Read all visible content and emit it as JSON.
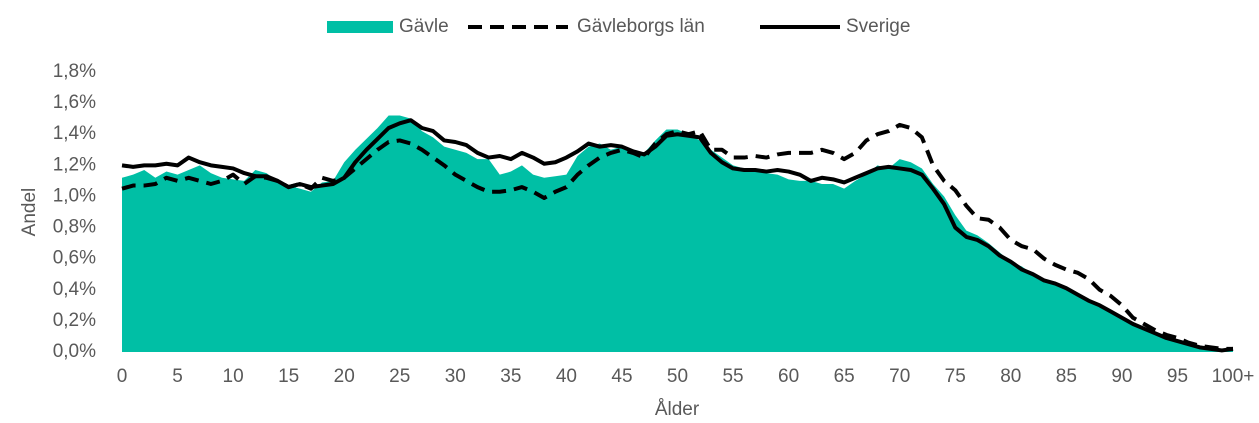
{
  "chart_data": {
    "type": "line",
    "xlabel": "Ålder",
    "ylabel": "Andel",
    "categories": [
      "0",
      null,
      null,
      null,
      null,
      "5",
      null,
      null,
      null,
      null,
      "10",
      null,
      null,
      null,
      null,
      "15",
      null,
      null,
      null,
      null,
      "20",
      null,
      null,
      null,
      null,
      "25",
      null,
      null,
      null,
      null,
      "30",
      null,
      null,
      null,
      null,
      "35",
      null,
      null,
      null,
      null,
      "40",
      null,
      null,
      null,
      null,
      "45",
      null,
      null,
      null,
      null,
      "50",
      null,
      null,
      null,
      null,
      "55",
      null,
      null,
      null,
      null,
      "60",
      null,
      null,
      null,
      null,
      "65",
      null,
      null,
      null,
      null,
      "70",
      null,
      null,
      null,
      null,
      "75",
      null,
      null,
      null,
      null,
      "80",
      null,
      null,
      null,
      null,
      "85",
      null,
      null,
      null,
      null,
      "90",
      null,
      null,
      null,
      null,
      "95",
      null,
      null,
      null,
      null,
      "100+"
    ],
    "ylim": [
      0,
      1.8
    ],
    "yticks": [
      {
        "value": 0,
        "label": "0,0%"
      },
      {
        "value": 0.2,
        "label": "0,2%"
      },
      {
        "value": 0.4,
        "label": "0,4%"
      },
      {
        "value": 0.6,
        "label": "0,6%"
      },
      {
        "value": 0.8,
        "label": "0,8%"
      },
      {
        "value": 1.0,
        "label": "1,0%"
      },
      {
        "value": 1.2,
        "label": "1,2%"
      },
      {
        "value": 1.4,
        "label": "1,4%"
      },
      {
        "value": 1.6,
        "label": "1,6%"
      },
      {
        "value": 1.8,
        "label": "1,8%"
      }
    ],
    "legend": "top",
    "series": [
      {
        "name": "Gävle",
        "color": "#00bfa5",
        "style": "area",
        "values": [
          1.12,
          1.14,
          1.17,
          1.12,
          1.16,
          1.14,
          1.17,
          1.2,
          1.15,
          1.12,
          1.11,
          1.1,
          1.17,
          1.15,
          1.1,
          1.07,
          1.05,
          1.03,
          1.09,
          1.1,
          1.22,
          1.3,
          1.37,
          1.44,
          1.52,
          1.52,
          1.5,
          1.42,
          1.38,
          1.32,
          1.3,
          1.28,
          1.24,
          1.24,
          1.14,
          1.16,
          1.2,
          1.14,
          1.12,
          1.13,
          1.14,
          1.26,
          1.32,
          1.34,
          1.3,
          1.32,
          1.3,
          1.28,
          1.36,
          1.43,
          1.43,
          1.4,
          1.36,
          1.3,
          1.25,
          1.2,
          1.18,
          1.17,
          1.15,
          1.14,
          1.11,
          1.1,
          1.1,
          1.08,
          1.08,
          1.05,
          1.1,
          1.14,
          1.2,
          1.18,
          1.24,
          1.22,
          1.18,
          1.08,
          1.0,
          0.88,
          0.78,
          0.75,
          0.7,
          0.64,
          0.58,
          0.55,
          0.5,
          0.46,
          0.43,
          0.4,
          0.36,
          0.32,
          0.29,
          0.25,
          0.21,
          0.18,
          0.14,
          0.11,
          0.09,
          0.07,
          0.06,
          0.04,
          0.03,
          0.02,
          0.02
        ]
      },
      {
        "name": "Gävleborgs län",
        "color": "#000000",
        "style": "dashed",
        "values": [
          1.05,
          1.07,
          1.07,
          1.08,
          1.12,
          1.1,
          1.12,
          1.1,
          1.08,
          1.1,
          1.14,
          1.08,
          1.13,
          1.12,
          1.1,
          1.06,
          1.08,
          1.05,
          1.12,
          1.1,
          1.12,
          1.18,
          1.24,
          1.3,
          1.35,
          1.36,
          1.34,
          1.3,
          1.25,
          1.2,
          1.14,
          1.1,
          1.06,
          1.03,
          1.03,
          1.04,
          1.06,
          1.03,
          0.99,
          1.03,
          1.06,
          1.14,
          1.2,
          1.25,
          1.28,
          1.3,
          1.28,
          1.25,
          1.34,
          1.4,
          1.42,
          1.4,
          1.42,
          1.3,
          1.3,
          1.25,
          1.25,
          1.26,
          1.25,
          1.27,
          1.28,
          1.28,
          1.28,
          1.3,
          1.28,
          1.24,
          1.28,
          1.36,
          1.4,
          1.42,
          1.46,
          1.44,
          1.38,
          1.2,
          1.1,
          1.04,
          0.94,
          0.86,
          0.85,
          0.8,
          0.72,
          0.68,
          0.66,
          0.6,
          0.56,
          0.53,
          0.51,
          0.47,
          0.4,
          0.36,
          0.3,
          0.22,
          0.18,
          0.14,
          0.11,
          0.09,
          0.06,
          0.04,
          0.03,
          0.02,
          0.02
        ]
      },
      {
        "name": "Sverige",
        "color": "#000000",
        "style": "solid",
        "values": [
          1.2,
          1.19,
          1.2,
          1.2,
          1.21,
          1.2,
          1.25,
          1.22,
          1.2,
          1.19,
          1.18,
          1.15,
          1.13,
          1.13,
          1.1,
          1.06,
          1.08,
          1.06,
          1.07,
          1.08,
          1.12,
          1.22,
          1.3,
          1.37,
          1.44,
          1.47,
          1.49,
          1.44,
          1.42,
          1.36,
          1.35,
          1.33,
          1.28,
          1.25,
          1.26,
          1.24,
          1.28,
          1.25,
          1.21,
          1.22,
          1.25,
          1.29,
          1.34,
          1.32,
          1.33,
          1.32,
          1.29,
          1.27,
          1.32,
          1.39,
          1.4,
          1.39,
          1.38,
          1.28,
          1.22,
          1.18,
          1.17,
          1.17,
          1.16,
          1.17,
          1.16,
          1.14,
          1.1,
          1.12,
          1.11,
          1.09,
          1.12,
          1.15,
          1.18,
          1.19,
          1.18,
          1.17,
          1.14,
          1.05,
          0.95,
          0.8,
          0.74,
          0.72,
          0.68,
          0.62,
          0.58,
          0.53,
          0.5,
          0.46,
          0.44,
          0.41,
          0.37,
          0.33,
          0.3,
          0.26,
          0.22,
          0.18,
          0.15,
          0.12,
          0.09,
          0.07,
          0.05,
          0.03,
          0.02,
          0.01,
          0.02
        ]
      }
    ]
  }
}
